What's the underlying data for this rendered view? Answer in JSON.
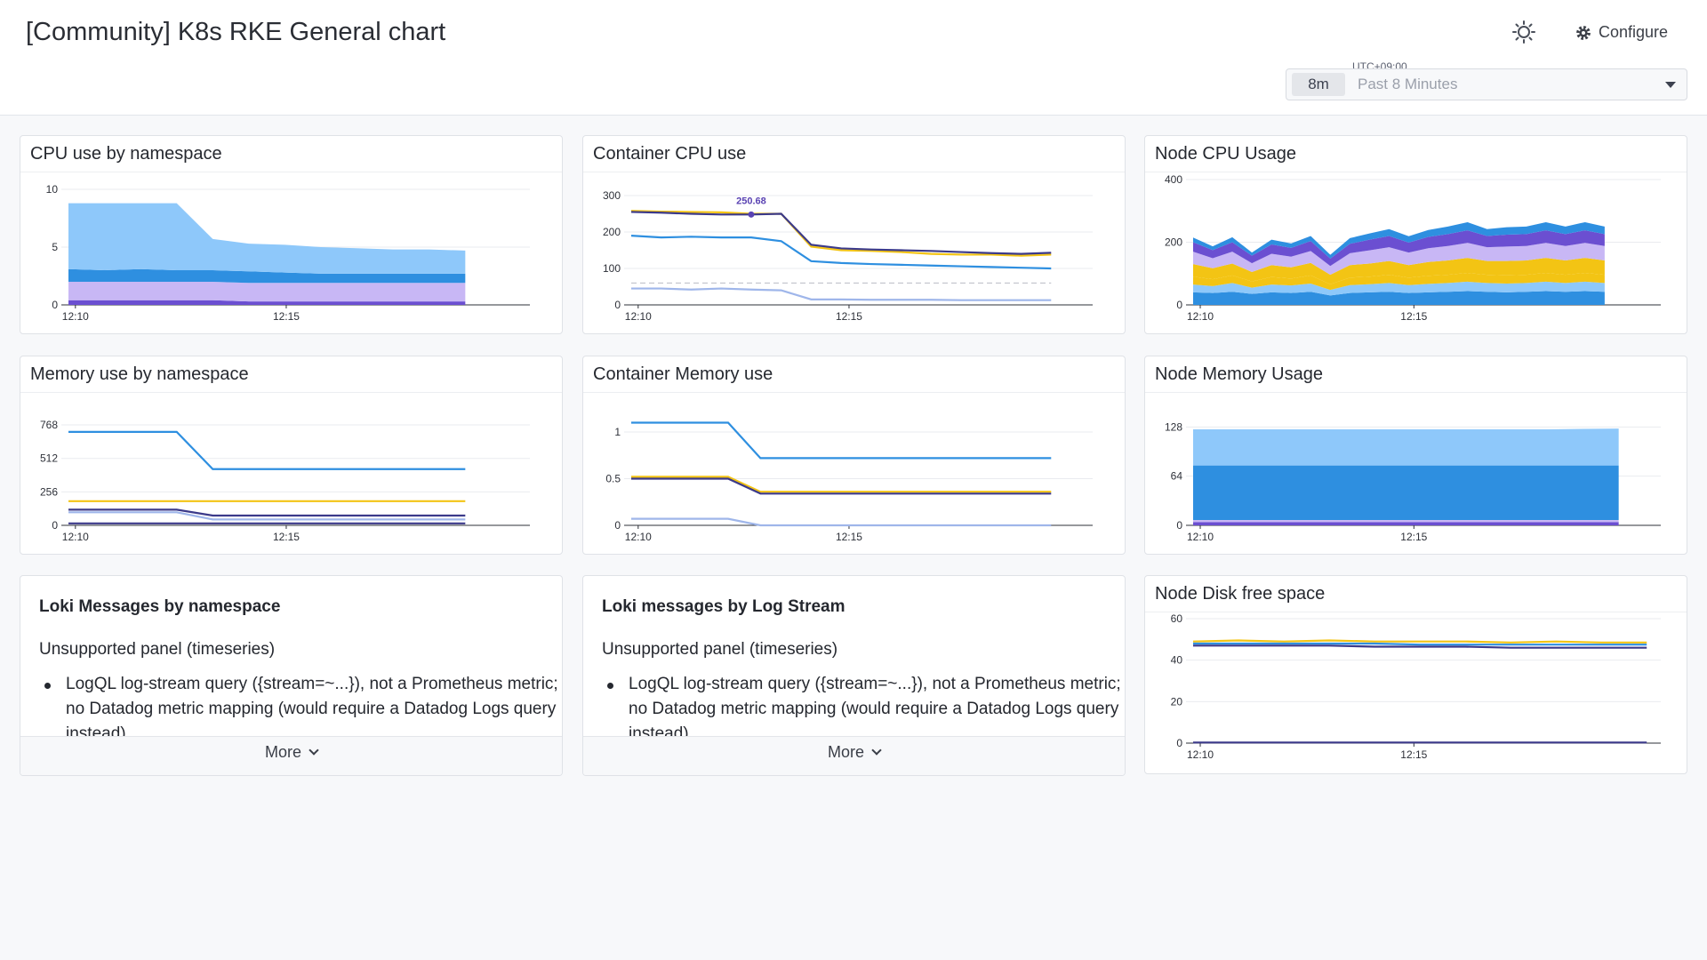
{
  "header": {
    "title": "[Community] K8s RKE General chart",
    "configure_label": "Configure",
    "timezone": "UTC+09:00",
    "time_chip": "8m",
    "time_range": "Past 8 Minutes"
  },
  "panels": {
    "cpu_ns": "CPU use by namespace",
    "container_cpu": "Container CPU use",
    "node_cpu": "Node CPU Usage",
    "mem_ns": "Memory use by namespace",
    "container_mem": "Container Memory use",
    "node_mem": "Node Memory Usage",
    "node_disk": "Node Disk free space"
  },
  "text_panels": [
    {
      "title": "Loki Messages by namespace",
      "subtitle": "Unsupported panel (timeseries)",
      "item": "LogQL log-stream query ({stream=~...}), not a Prometheus metric; no Datadog metric mapping (would require a Datadog Logs query instead)",
      "more_label": "More"
    },
    {
      "title": "Loki messages by Log Stream",
      "subtitle": "Unsupported panel (timeseries)",
      "item": "LogQL log-stream query ({stream=~...}), not a Prometheus metric; no Datadog metric mapping (would require a Datadog Logs query instead)",
      "more_label": "More"
    }
  ],
  "colors": {
    "light_blue": "#8ec8fa",
    "blue": "#2e8fe0",
    "purple": "#6b4fd1",
    "lavender": "#c8b7f5",
    "yellow": "#f3c414",
    "dark_navy": "#3c3a8a",
    "pale_blue": "#9fb6ea"
  },
  "chart_data": [
    {
      "id": "cpu_ns",
      "type": "area",
      "stacked": true,
      "x": [
        "12:08:40",
        "12:09",
        "12:09:30",
        "12:10",
        "12:10:30",
        "12:11",
        "12:12",
        "12:13",
        "12:14",
        "12:15",
        "12:16",
        "12:16:20"
      ],
      "xticks": [
        "12:10",
        "12:15"
      ],
      "yticks": [
        "0",
        "5",
        "10"
      ],
      "ylim": [
        0,
        10
      ],
      "series": [
        {
          "values": [
            0.4,
            0.4,
            0.4,
            0.4,
            0.4,
            0.3,
            0.3,
            0.3,
            0.3,
            0.3,
            0.3,
            0.3
          ]
        },
        {
          "values": [
            1.6,
            1.6,
            1.6,
            1.6,
            1.6,
            1.6,
            1.6,
            1.6,
            1.6,
            1.6,
            1.6,
            1.6
          ]
        },
        {
          "values": [
            1.1,
            1.0,
            1.1,
            1.0,
            1.0,
            1.0,
            0.9,
            0.8,
            0.8,
            0.8,
            0.8,
            0.8
          ]
        },
        {
          "values": [
            5.7,
            5.8,
            5.7,
            5.8,
            2.7,
            2.4,
            2.4,
            2.3,
            2.2,
            2.1,
            2.1,
            2.0
          ]
        }
      ]
    },
    {
      "id": "container_cpu",
      "type": "line",
      "x": [
        "12:08:40",
        "12:09",
        "12:09:30",
        "12:10",
        "12:10:30",
        "12:11",
        "12:11:30",
        "12:12",
        "12:13",
        "12:14",
        "12:15",
        "12:16",
        "12:17",
        "12:18",
        "12:18:40"
      ],
      "xticks": [
        "12:10",
        "12:15"
      ],
      "yticks": [
        "0",
        "100",
        "200",
        "300"
      ],
      "ylim": [
        0,
        300
      ],
      "annotation": "250.68",
      "series": [
        {
          "values": [
            258,
            256,
            255,
            254,
            250,
            250,
            160,
            150,
            148,
            145,
            140,
            138,
            138,
            135,
            138
          ]
        },
        {
          "values": [
            255,
            253,
            250,
            248,
            248,
            250,
            165,
            155,
            152,
            150,
            148,
            145,
            142,
            140,
            143
          ]
        },
        {
          "values": [
            190,
            185,
            187,
            185,
            185,
            175,
            120,
            115,
            112,
            110,
            108,
            106,
            104,
            102,
            100
          ]
        },
        {
          "values": [
            45,
            45,
            42,
            45,
            42,
            40,
            15,
            15,
            14,
            14,
            14,
            13,
            13,
            13,
            13
          ]
        },
        {
          "values": [
            60,
            60,
            60,
            60,
            60,
            60,
            60,
            60,
            60,
            60,
            60,
            60,
            60,
            60,
            60
          ]
        }
      ]
    },
    {
      "id": "node_cpu",
      "type": "area",
      "stacked": true,
      "x": [
        "12:08:40",
        "12:09",
        "12:09:30",
        "12:10",
        "12:10:30",
        "12:11",
        "12:11:30",
        "12:12",
        "12:12:30",
        "12:13",
        "12:13:30",
        "12:14",
        "12:14:30",
        "12:15",
        "12:15:30",
        "12:16",
        "12:16:30",
        "12:17",
        "12:17:30",
        "12:18",
        "12:18:30",
        "12:18:40"
      ],
      "xticks": [
        "12:10",
        "12:15"
      ],
      "yticks": [
        "0",
        "200",
        "400"
      ],
      "ylim": [
        0,
        400
      ],
      "series": [
        {
          "values": [
            40,
            38,
            42,
            35,
            40,
            38,
            42,
            30,
            38,
            40,
            42,
            38,
            40,
            42,
            44,
            42,
            40,
            42,
            44,
            42,
            44,
            42
          ]
        },
        {
          "values": [
            25,
            22,
            28,
            20,
            25,
            24,
            26,
            18,
            25,
            26,
            28,
            25,
            27,
            28,
            30,
            28,
            28,
            28,
            30,
            28,
            30,
            28
          ]
        },
        {
          "values": [
            25,
            22,
            24,
            20,
            24,
            22,
            26,
            18,
            24,
            24,
            26,
            24,
            26,
            26,
            28,
            26,
            26,
            26,
            28,
            26,
            28,
            26
          ]
        },
        {
          "values": [
            40,
            35,
            38,
            30,
            38,
            36,
            40,
            30,
            40,
            42,
            44,
            40,
            44,
            46,
            48,
            44,
            46,
            46,
            48,
            46,
            48,
            46
          ]
        },
        {
          "values": [
            40,
            32,
            38,
            28,
            36,
            34,
            38,
            28,
            38,
            42,
            44,
            40,
            44,
            46,
            48,
            44,
            46,
            46,
            48,
            46,
            48,
            46
          ]
        },
        {
          "values": [
            30,
            26,
            30,
            24,
            30,
            28,
            32,
            24,
            30,
            34,
            36,
            32,
            36,
            38,
            40,
            36,
            38,
            38,
            40,
            38,
            40,
            38
          ]
        },
        {
          "values": [
            15,
            12,
            16,
            10,
            15,
            14,
            16,
            12,
            18,
            20,
            22,
            20,
            22,
            24,
            26,
            22,
            24,
            24,
            26,
            24,
            26,
            24
          ]
        }
      ]
    },
    {
      "id": "mem_ns",
      "type": "line",
      "x": [
        "12:08:40",
        "12:09",
        "12:09:30",
        "12:10",
        "12:10:30",
        "12:11",
        "12:12",
        "12:13",
        "12:14",
        "12:15",
        "12:16",
        "12:16:20"
      ],
      "xticks": [
        "12:10",
        "12:15"
      ],
      "yticks": [
        "0",
        "256",
        "512",
        "768"
      ],
      "ylim": [
        0,
        850
      ],
      "series": [
        {
          "values": [
            715,
            715,
            715,
            715,
            430,
            430,
            430,
            430,
            430,
            430,
            430,
            430
          ]
        },
        {
          "values": [
            185,
            185,
            185,
            185,
            185,
            185,
            185,
            185,
            185,
            185,
            185,
            185
          ]
        },
        {
          "values": [
            120,
            120,
            120,
            120,
            75,
            75,
            75,
            75,
            75,
            75,
            75,
            75
          ]
        },
        {
          "values": [
            100,
            100,
            100,
            100,
            45,
            45,
            45,
            45,
            45,
            45,
            45,
            45
          ]
        },
        {
          "values": [
            15,
            15,
            15,
            15,
            15,
            15,
            15,
            15,
            15,
            15,
            15,
            15
          ]
        }
      ]
    },
    {
      "id": "container_mem",
      "type": "line",
      "x": [
        "12:08:40",
        "12:09",
        "12:09:30",
        "12:10",
        "12:10:30",
        "12:11",
        "12:12",
        "12:13",
        "12:14",
        "12:15",
        "12:16",
        "12:17",
        "12:18",
        "12:18:40"
      ],
      "xticks": [
        "12:10",
        "12:15"
      ],
      "yticks": [
        "0",
        "0.5",
        "1"
      ],
      "ylim": [
        0,
        1.2
      ],
      "series": [
        {
          "values": [
            1.1,
            1.1,
            1.1,
            1.1,
            0.72,
            0.72,
            0.72,
            0.72,
            0.72,
            0.72,
            0.72,
            0.72,
            0.72,
            0.72
          ]
        },
        {
          "values": [
            0.52,
            0.52,
            0.52,
            0.52,
            0.36,
            0.36,
            0.36,
            0.36,
            0.36,
            0.36,
            0.36,
            0.36,
            0.36,
            0.36
          ]
        },
        {
          "values": [
            0.5,
            0.5,
            0.5,
            0.5,
            0.34,
            0.34,
            0.34,
            0.34,
            0.34,
            0.34,
            0.34,
            0.34,
            0.34,
            0.34
          ]
        },
        {
          "values": [
            0.07,
            0.07,
            0.07,
            0.07,
            0.0,
            0.0,
            0.0,
            0.0,
            0.0,
            0.0,
            0.0,
            0.0,
            0.0,
            0.0
          ]
        }
      ]
    },
    {
      "id": "node_mem",
      "type": "area",
      "stacked": true,
      "x": [
        "12:08:40",
        "12:10",
        "12:12",
        "12:14",
        "12:16",
        "12:18",
        "12:18:40"
      ],
      "xticks": [
        "12:10",
        "12:15"
      ],
      "yticks": [
        "0",
        "64",
        "128"
      ],
      "ylim": [
        0,
        140
      ],
      "series": [
        {
          "values": [
            4,
            4,
            4,
            4,
            4,
            4,
            4
          ]
        },
        {
          "values": [
            3,
            3,
            3,
            3,
            3,
            3,
            3
          ]
        },
        {
          "values": [
            71,
            71,
            71,
            71,
            71,
            71,
            71
          ]
        },
        {
          "values": [
            47,
            47,
            47,
            47,
            47,
            47,
            48
          ]
        }
      ]
    },
    {
      "id": "node_disk",
      "type": "line",
      "x": [
        "12:08:40",
        "12:10",
        "12:11",
        "12:12",
        "12:13",
        "12:14",
        "12:15",
        "12:16",
        "12:17",
        "12:18",
        "12:18:40"
      ],
      "xticks": [
        "12:10",
        "12:15"
      ],
      "yticks": [
        "0",
        "20",
        "40",
        "60"
      ],
      "ylim": [
        0,
        60
      ],
      "series": [
        {
          "values": [
            49,
            49.5,
            49,
            49.5,
            49,
            49,
            49,
            48.5,
            49,
            48.5,
            48.5
          ]
        },
        {
          "values": [
            48,
            48,
            48,
            48,
            48,
            47.5,
            47.5,
            47.5,
            47.5,
            47.5,
            47.5
          ]
        },
        {
          "values": [
            47,
            47,
            47,
            47,
            46.5,
            46.5,
            46.5,
            46,
            46,
            46,
            46
          ]
        },
        {
          "values": [
            0.3,
            0.3,
            0.3,
            0.3,
            0.3,
            0.3,
            0.3,
            0.3,
            0.3,
            0.3,
            0.3
          ]
        }
      ]
    }
  ]
}
